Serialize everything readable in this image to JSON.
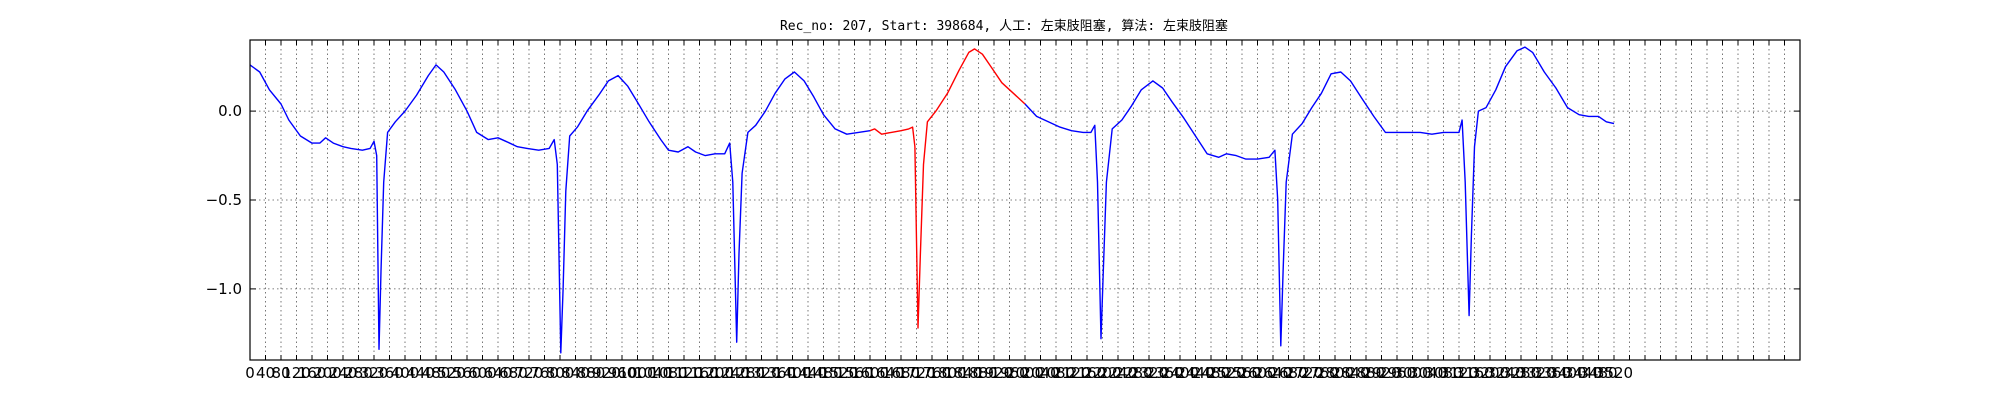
{
  "chart_data": {
    "type": "line",
    "title": "Rec_no: 207, Start: 398684, 人工: 左束肢阻塞, 算法: 左束肢阻塞",
    "xlabel": "",
    "ylabel": "",
    "xlim": [
      0,
      4000
    ],
    "ylim": [
      -1.4,
      0.4
    ],
    "yticks": [
      0.0,
      -0.5,
      -1.0
    ],
    "ytick_labels": [
      "0.0",
      "−0.5",
      "−1.0"
    ],
    "xticks": [
      0,
      40,
      80,
      120,
      160,
      200,
      240,
      280,
      320,
      360,
      400,
      440,
      480,
      520,
      560,
      600,
      640,
      680,
      720,
      760,
      800,
      840,
      880,
      920,
      960,
      1000,
      1040,
      1080,
      1120,
      1160,
      1200,
      1240,
      1280,
      1320,
      1360,
      1400,
      1440,
      1480,
      1520,
      1560,
      1600,
      1640,
      1680,
      1720,
      1760,
      1800,
      1840,
      1880,
      1920,
      1960,
      2000,
      2040,
      2080,
      2120,
      2160,
      2200,
      2240,
      2280,
      2320,
      2360,
      2400,
      2440,
      2480,
      2520,
      2560,
      2600,
      2640,
      2680,
      2720,
      2760,
      2800,
      2840,
      2880,
      2920,
      2960,
      3000,
      3040,
      3080,
      3120,
      3160,
      3200,
      3240,
      3280,
      3320,
      3360,
      3400,
      3440,
      3480,
      3520,
      3560,
      3600,
      3640,
      3680,
      3720,
      3760,
      3800,
      3840,
      3880,
      3920,
      3960,
      4000
    ],
    "grid": true,
    "x_end": 3520,
    "highlight_range": [
      1600,
      2000
    ],
    "series": [
      {
        "color": "#0000ff",
        "points": [
          [
            0,
            0.26
          ],
          [
            25,
            0.22
          ],
          [
            50,
            0.12
          ],
          [
            80,
            0.04
          ],
          [
            100,
            -0.05
          ],
          [
            130,
            -0.14
          ],
          [
            160,
            -0.18
          ],
          [
            180,
            -0.18
          ],
          [
            195,
            -0.15
          ],
          [
            215,
            -0.18
          ],
          [
            240,
            -0.2
          ],
          [
            260,
            -0.21
          ],
          [
            290,
            -0.22
          ],
          [
            310,
            -0.21
          ],
          [
            320,
            -0.17
          ],
          [
            327,
            -0.25
          ],
          [
            333,
            -1.34
          ],
          [
            338,
            -0.9
          ],
          [
            345,
            -0.4
          ],
          [
            355,
            -0.12
          ],
          [
            375,
            -0.06
          ],
          [
            400,
            0.0
          ],
          [
            430,
            0.09
          ],
          [
            460,
            0.2
          ],
          [
            480,
            0.26
          ],
          [
            500,
            0.22
          ],
          [
            530,
            0.12
          ],
          [
            560,
            0.0
          ],
          [
            585,
            -0.12
          ],
          [
            615,
            -0.16
          ],
          [
            640,
            -0.15
          ],
          [
            660,
            -0.17
          ],
          [
            690,
            -0.2
          ],
          [
            715,
            -0.21
          ],
          [
            745,
            -0.22
          ],
          [
            772,
            -0.21
          ],
          [
            785,
            -0.16
          ],
          [
            793,
            -0.3
          ],
          [
            802,
            -1.36
          ],
          [
            808,
            -1.0
          ],
          [
            815,
            -0.45
          ],
          [
            825,
            -0.14
          ],
          [
            845,
            -0.09
          ],
          [
            870,
            0.0
          ],
          [
            900,
            0.09
          ],
          [
            925,
            0.17
          ],
          [
            950,
            0.2
          ],
          [
            975,
            0.14
          ],
          [
            1000,
            0.05
          ],
          [
            1030,
            -0.06
          ],
          [
            1060,
            -0.16
          ],
          [
            1080,
            -0.22
          ],
          [
            1105,
            -0.23
          ],
          [
            1130,
            -0.2
          ],
          [
            1150,
            -0.23
          ],
          [
            1175,
            -0.25
          ],
          [
            1200,
            -0.24
          ],
          [
            1225,
            -0.24
          ],
          [
            1238,
            -0.18
          ],
          [
            1246,
            -0.4
          ],
          [
            1256,
            -1.3
          ],
          [
            1262,
            -0.8
          ],
          [
            1270,
            -0.35
          ],
          [
            1285,
            -0.12
          ],
          [
            1305,
            -0.08
          ],
          [
            1330,
            0.0
          ],
          [
            1355,
            0.1
          ],
          [
            1380,
            0.18
          ],
          [
            1405,
            0.22
          ],
          [
            1430,
            0.17
          ],
          [
            1455,
            0.08
          ],
          [
            1480,
            -0.02
          ],
          [
            1510,
            -0.1
          ],
          [
            1540,
            -0.13
          ],
          [
            1570,
            -0.12
          ],
          [
            1600,
            -0.11
          ]
        ]
      },
      {
        "color": "#ff0000",
        "points": [
          [
            1600,
            -0.11
          ],
          [
            1612,
            -0.1
          ],
          [
            1630,
            -0.13
          ],
          [
            1655,
            -0.12
          ],
          [
            1680,
            -0.11
          ],
          [
            1700,
            -0.1
          ],
          [
            1710,
            -0.09
          ],
          [
            1716,
            -0.2
          ],
          [
            1724,
            -1.22
          ],
          [
            1730,
            -0.8
          ],
          [
            1738,
            -0.3
          ],
          [
            1748,
            -0.06
          ],
          [
            1770,
            0.0
          ],
          [
            1800,
            0.1
          ],
          [
            1830,
            0.23
          ],
          [
            1855,
            0.33
          ],
          [
            1870,
            0.35
          ],
          [
            1890,
            0.32
          ],
          [
            1915,
            0.24
          ],
          [
            1940,
            0.16
          ],
          [
            1970,
            0.1
          ],
          [
            2000,
            0.04
          ]
        ]
      },
      {
        "color": "#0000ff",
        "points": [
          [
            2000,
            0.04
          ],
          [
            2030,
            -0.03
          ],
          [
            2060,
            -0.06
          ],
          [
            2090,
            -0.09
          ],
          [
            2120,
            -0.11
          ],
          [
            2150,
            -0.12
          ],
          [
            2170,
            -0.12
          ],
          [
            2180,
            -0.08
          ],
          [
            2187,
            -0.4
          ],
          [
            2196,
            -1.28
          ],
          [
            2202,
            -0.9
          ],
          [
            2210,
            -0.4
          ],
          [
            2225,
            -0.1
          ],
          [
            2250,
            -0.05
          ],
          [
            2275,
            0.03
          ],
          [
            2300,
            0.12
          ],
          [
            2330,
            0.17
          ],
          [
            2355,
            0.13
          ],
          [
            2380,
            0.05
          ],
          [
            2410,
            -0.04
          ],
          [
            2440,
            -0.14
          ],
          [
            2470,
            -0.24
          ],
          [
            2500,
            -0.26
          ],
          [
            2520,
            -0.24
          ],
          [
            2545,
            -0.25
          ],
          [
            2570,
            -0.27
          ],
          [
            2600,
            -0.27
          ],
          [
            2630,
            -0.26
          ],
          [
            2645,
            -0.22
          ],
          [
            2652,
            -0.5
          ],
          [
            2660,
            -1.32
          ],
          [
            2666,
            -0.9
          ],
          [
            2674,
            -0.4
          ],
          [
            2690,
            -0.13
          ],
          [
            2715,
            -0.07
          ],
          [
            2740,
            0.02
          ],
          [
            2765,
            0.1
          ],
          [
            2790,
            0.21
          ],
          [
            2815,
            0.22
          ],
          [
            2840,
            0.17
          ],
          [
            2870,
            0.07
          ],
          [
            2900,
            -0.03
          ],
          [
            2930,
            -0.12
          ],
          [
            2960,
            -0.12
          ],
          [
            2990,
            -0.12
          ],
          [
            3020,
            -0.12
          ],
          [
            3050,
            -0.13
          ],
          [
            3080,
            -0.12
          ],
          [
            3120,
            -0.12
          ],
          [
            3128,
            -0.05
          ],
          [
            3136,
            -0.4
          ],
          [
            3146,
            -1.15
          ],
          [
            3152,
            -0.7
          ],
          [
            3160,
            -0.2
          ],
          [
            3170,
            0.0
          ],
          [
            3190,
            0.02
          ],
          [
            3215,
            0.12
          ],
          [
            3240,
            0.25
          ],
          [
            3270,
            0.34
          ],
          [
            3290,
            0.36
          ],
          [
            3310,
            0.33
          ],
          [
            3340,
            0.22
          ],
          [
            3370,
            0.13
          ],
          [
            3400,
            0.02
          ],
          [
            3430,
            -0.02
          ],
          [
            3455,
            -0.03
          ],
          [
            3480,
            -0.03
          ],
          [
            3500,
            -0.06
          ],
          [
            3520,
            -0.07
          ]
        ]
      }
    ]
  }
}
